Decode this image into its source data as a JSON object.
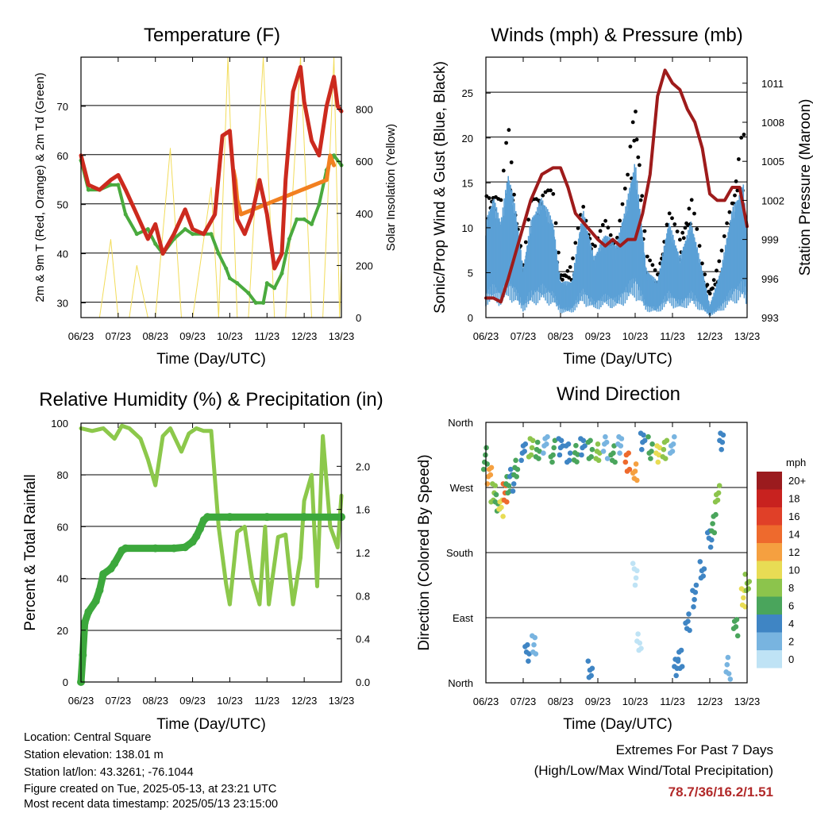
{
  "chart_data": [
    {
      "type": "line",
      "title": "Temperature (F)",
      "xlabel": "Time (Day/UTC)",
      "ylabel": "2m & 9m T (Red, Orange) & 2m Td (Green)",
      "y2label": "Solar Insolation (Yellow)",
      "x_ticks": [
        "06/23",
        "07/23",
        "08/23",
        "09/23",
        "10/23",
        "11/23",
        "12/23",
        "13/23"
      ],
      "ylim": [
        27,
        80
      ],
      "y_ticks": [
        30,
        40,
        50,
        60,
        70
      ],
      "y2lim": [
        0,
        1000
      ],
      "y2_ticks": [
        0,
        200,
        400,
        600,
        800
      ],
      "series": [
        {
          "name": "2m T",
          "color": "#cc2a1e",
          "x": [
            6.0,
            6.2,
            6.5,
            6.8,
            7.0,
            7.2,
            7.5,
            7.8,
            8.0,
            8.2,
            8.5,
            8.8,
            9.0,
            9.3,
            9.6,
            9.8,
            10.0,
            10.2,
            10.4,
            10.6,
            10.8,
            11.0,
            11.2,
            11.4,
            11.5,
            11.7,
            11.9,
            12.0,
            12.2,
            12.4,
            12.6,
            12.8,
            12.9,
            13.0
          ],
          "y": [
            60,
            54,
            53,
            55,
            56,
            53,
            48,
            43,
            46,
            40,
            44,
            49,
            45,
            44,
            48,
            64,
            65,
            47,
            44,
            48,
            55,
            48,
            37,
            40,
            55,
            73,
            78,
            71,
            63,
            60,
            70,
            76,
            70,
            69
          ]
        },
        {
          "name": "9m T",
          "color": "#f28020",
          "x": [
            10.1,
            10.15,
            10.2,
            10.3,
            12.6,
            12.7,
            12.8
          ],
          "y": [
            57,
            55,
            51,
            48,
            55,
            60,
            58
          ]
        },
        {
          "name": "2m Td",
          "color": "#4aaa3e",
          "x": [
            6.0,
            6.2,
            6.5,
            6.8,
            7.0,
            7.2,
            7.5,
            7.8,
            8.0,
            8.2,
            8.5,
            8.8,
            9.0,
            9.3,
            9.5,
            9.7,
            9.9,
            10.0,
            10.2,
            10.5,
            10.7,
            10.9,
            11.0,
            11.2,
            11.4,
            11.6,
            11.8,
            12.0,
            12.2,
            12.4,
            12.6,
            12.8,
            13.0
          ],
          "y": [
            59,
            53,
            53,
            54,
            54,
            48,
            44,
            45,
            42,
            40,
            43,
            45,
            44,
            44,
            44,
            40,
            37,
            35,
            34,
            32,
            30,
            30,
            34,
            33,
            36,
            43,
            47,
            47,
            46,
            50,
            57,
            60,
            58
          ]
        },
        {
          "name": "Solar Insolation",
          "color": "#f2dc5a",
          "axis": "y2",
          "x": [
            6.5,
            6.8,
            7.0,
            7.3,
            7.5,
            7.8,
            8.0,
            8.4,
            8.7,
            9.0,
            9.5,
            9.7,
            9.95,
            10.2,
            10.5,
            10.9,
            11.2,
            11.5,
            11.9,
            12.2,
            12.5,
            12.8,
            12.95,
            13.0
          ],
          "y": [
            0,
            300,
            0,
            0,
            200,
            0,
            0,
            650,
            0,
            0,
            500,
            0,
            1000,
            0,
            0,
            1000,
            0,
            0,
            1000,
            0,
            0,
            1000,
            0,
            200
          ]
        }
      ]
    },
    {
      "type": "scatter",
      "title": "Winds (mph) & Pressure (mb)",
      "xlabel": "Time (Day/UTC)",
      "ylabel": "Sonic/Prop Wind & Gust (Blue, Black)",
      "y2label": "Station Pressure (Maroon)",
      "x_ticks": [
        "06/23",
        "07/23",
        "08/23",
        "09/23",
        "10/23",
        "11/23",
        "12/23",
        "13/23"
      ],
      "ylim": [
        0,
        29
      ],
      "y_ticks": [
        0,
        5,
        10,
        15,
        20,
        25
      ],
      "y2lim": [
        993,
        1013
      ],
      "y2_ticks": [
        993,
        996,
        999,
        1002,
        1005,
        1008,
        1011
      ],
      "series": [
        {
          "name": "Wind",
          "color": "#5ba0d6",
          "x": [
            6.0,
            6.2,
            6.4,
            6.6,
            6.8,
            7.0,
            7.2,
            7.5,
            7.8,
            8.0,
            8.3,
            8.6,
            8.9,
            9.2,
            9.5,
            9.8,
            10.0,
            10.3,
            10.6,
            10.9,
            11.2,
            11.5,
            11.8,
            12.0,
            12.3,
            12.6,
            12.9,
            13.0
          ],
          "y": [
            8,
            10,
            8,
            12,
            9,
            4,
            8,
            10,
            8,
            3,
            3,
            9,
            5,
            7,
            6,
            10,
            13,
            4,
            3,
            8,
            5,
            8,
            4,
            1,
            4,
            9,
            11,
            7
          ]
        },
        {
          "name": "Gust",
          "color": "#000000",
          "x": [
            6.0,
            6.2,
            6.4,
            6.6,
            6.8,
            7.0,
            7.2,
            7.5,
            7.8,
            8.0,
            8.3,
            8.6,
            8.9,
            9.2,
            9.5,
            9.8,
            10.0,
            10.3,
            10.6,
            10.9,
            11.2,
            11.5,
            11.8,
            12.0,
            12.3,
            12.6,
            12.9,
            13.0
          ],
          "y": [
            14,
            15,
            13,
            22,
            13,
            6,
            13,
            15,
            14,
            5,
            6,
            13,
            8,
            11,
            9,
            16,
            26,
            7,
            5,
            12,
            9,
            14,
            6,
            3,
            7,
            14,
            22,
            12
          ]
        },
        {
          "name": "Pressure",
          "color": "#9e1b1b",
          "axis": "y2",
          "x": [
            6.0,
            6.2,
            6.4,
            6.6,
            6.8,
            7.0,
            7.2,
            7.5,
            7.8,
            8.0,
            8.2,
            8.4,
            8.7,
            9.0,
            9.2,
            9.4,
            9.6,
            9.8,
            10.0,
            10.2,
            10.4,
            10.6,
            10.8,
            11.0,
            11.2,
            11.4,
            11.6,
            11.8,
            12.0,
            12.2,
            12.4,
            12.6,
            12.8,
            13.0
          ],
          "y": [
            994.5,
            994.5,
            994.2,
            996,
            998,
            1000,
            1002,
            1004,
            1004.5,
            1004.5,
            1003,
            1001,
            1000,
            999,
            998.5,
            999,
            998.5,
            999,
            999,
            1001,
            1004,
            1010,
            1012,
            1011,
            1010.5,
            1009,
            1008,
            1006,
            1002.5,
            1002,
            1002,
            1003,
            1003,
            1000
          ]
        }
      ]
    },
    {
      "type": "line",
      "title": "Relative Humidity (%) & Precipitation (in)",
      "xlabel": "Time (Day/UTC)",
      "ylabel": "Percent & Total Rainfall",
      "x_ticks": [
        "06/23",
        "07/23",
        "08/23",
        "09/23",
        "10/23",
        "11/23",
        "12/23",
        "13/23"
      ],
      "ylim": [
        0,
        100
      ],
      "y_ticks": [
        0,
        20,
        40,
        60,
        80,
        100
      ],
      "y2lim": [
        0.0,
        2.4
      ],
      "y2_ticks": [
        "0.0",
        "0.4",
        "0.8",
        "1.2",
        "1.6",
        "2.0"
      ],
      "series": [
        {
          "name": "Relative Humidity",
          "color": "#8cc84b",
          "x": [
            6.0,
            6.3,
            6.6,
            6.9,
            7.1,
            7.3,
            7.6,
            7.8,
            8.0,
            8.2,
            8.4,
            8.7,
            8.9,
            9.1,
            9.3,
            9.5,
            9.7,
            9.9,
            10.0,
            10.2,
            10.4,
            10.6,
            10.8,
            10.95,
            11.05,
            11.3,
            11.5,
            11.7,
            11.9,
            12.0,
            12.2,
            12.35,
            12.5,
            12.7,
            12.9,
            13.0
          ],
          "y": [
            98,
            97,
            98,
            94,
            99,
            98,
            94,
            86,
            76,
            95,
            98,
            89,
            96,
            98,
            97,
            97,
            60,
            38,
            30,
            58,
            60,
            40,
            30,
            60,
            30,
            56,
            57,
            30,
            48,
            70,
            80,
            37,
            95,
            60,
            52,
            72
          ]
        },
        {
          "name": "Total Precipitation",
          "color": "#3ca83c",
          "axis": "y2",
          "x": [
            6.0,
            6.05,
            6.1,
            6.2,
            6.4,
            6.5,
            6.6,
            6.8,
            6.9,
            7.1,
            7.2,
            8.0,
            8.5,
            8.8,
            9.0,
            9.1,
            9.2,
            9.3,
            9.4,
            10.0,
            11.0,
            12.0,
            13.0
          ],
          "y": [
            0.0,
            0.25,
            0.55,
            0.65,
            0.75,
            0.85,
            1.0,
            1.05,
            1.1,
            1.22,
            1.24,
            1.24,
            1.24,
            1.25,
            1.3,
            1.35,
            1.42,
            1.5,
            1.53,
            1.53,
            1.53,
            1.53,
            1.53
          ]
        }
      ]
    },
    {
      "type": "scatter",
      "title": "Wind Direction",
      "xlabel": "Time (Day/UTC)",
      "ylabel": "Direction (Colored By Speed)",
      "x_ticks": [
        "06/23",
        "07/23",
        "08/23",
        "09/23",
        "10/23",
        "11/23",
        "12/23",
        "13/23"
      ],
      "y_ticks": [
        "North",
        "East",
        "South",
        "West",
        "North"
      ],
      "ylim": [
        0,
        360
      ],
      "colorbar": {
        "title": "mph",
        "labels": [
          "20+",
          "18",
          "16",
          "14",
          "12",
          "10",
          "8",
          "6",
          "4",
          "2",
          "0"
        ],
        "colors": [
          "#9b1b1e",
          "#c8221f",
          "#e04028",
          "#ee6a2d",
          "#f5a040",
          "#e8dc54",
          "#8cc44c",
          "#4aa55c",
          "#3f85c4",
          "#78b4e0",
          "#bfe3f5"
        ]
      },
      "series": [
        {
          "name": "Wind Direction",
          "x": [
            6.0,
            6.1,
            6.2,
            6.3,
            6.4,
            6.5,
            6.6,
            6.7,
            6.8,
            7.0,
            7.2,
            7.4,
            7.6,
            7.8,
            8.0,
            8.2,
            8.4,
            8.6,
            8.8,
            9.0,
            9.2,
            9.4,
            9.6,
            9.8,
            10.0,
            10.2,
            10.4,
            10.6,
            10.8,
            11.0,
            11.1,
            11.2,
            11.4,
            11.6,
            11.8,
            12.0,
            12.1,
            12.2,
            12.3,
            12.5,
            12.7,
            12.9,
            13.0,
            7.1,
            7.3,
            8.8,
            10.0,
            10.1
          ],
          "y": [
            310,
            290,
            265,
            250,
            240,
            260,
            270,
            280,
            300,
            320,
            325,
            320,
            325,
            320,
            330,
            320,
            318,
            325,
            320,
            315,
            325,
            320,
            330,
            305,
            290,
            330,
            325,
            320,
            325,
            330,
            20,
            30,
            80,
            120,
            160,
            200,
            220,
            260,
            330,
            20,
            80,
            120,
            140,
            40,
            50,
            15,
            150,
            60
          ],
          "speed": [
            6,
            12,
            8,
            6,
            10,
            14,
            6,
            4,
            6,
            4,
            8,
            6,
            2,
            6,
            4,
            4,
            6,
            4,
            6,
            8,
            2,
            6,
            2,
            14,
            12,
            4,
            6,
            10,
            8,
            2,
            4,
            4,
            4,
            4,
            4,
            4,
            6,
            8,
            4,
            2,
            6,
            10,
            8,
            4,
            2,
            4,
            0,
            0
          ]
        }
      ]
    }
  ],
  "info": {
    "location": "Location: Central Square",
    "elevation": "Station elevation: 138.01 m",
    "latlon": "Station lat/lon: 43.3261; -76.1044",
    "created": "Figure created on Tue, 2025-05-13, at 23:21 UTC",
    "recent": "Most recent data timestamp: 2025/05/13 23:15:00"
  },
  "extremes": {
    "title": "Extremes For Past 7 Days",
    "subtitle": "(High/Low/Max Wind/Total Precipitation)",
    "values": "78.7/36/16.2/1.51"
  }
}
